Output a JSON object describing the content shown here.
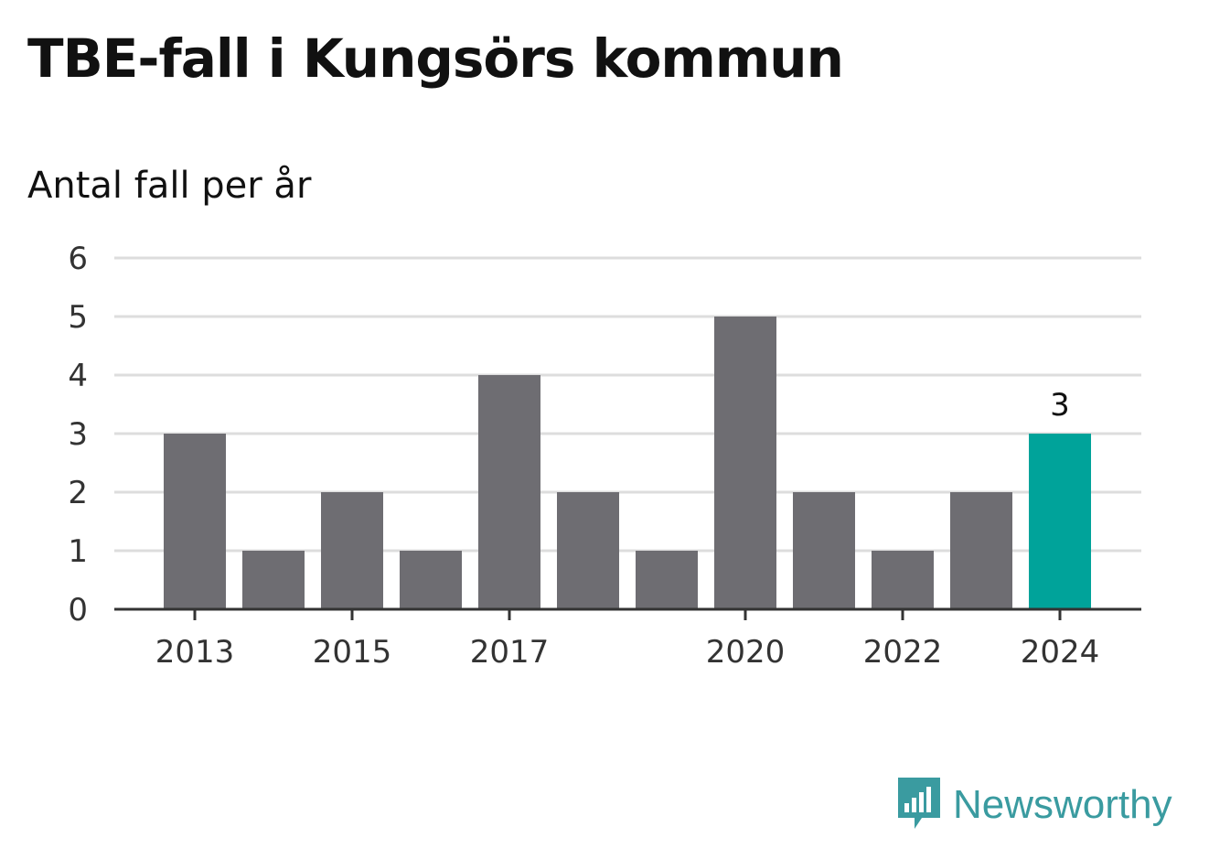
{
  "title": "TBE-fall i Kungsörs kommun",
  "subtitle": "Antal fall per år",
  "colors": {
    "bar": "#6e6d72",
    "highlight": "#00a39a",
    "grid": "#dddddd",
    "axis": "#333333",
    "brand": "#3a9ba0"
  },
  "brand": {
    "name": "Newsworthy",
    "icon": "bar-chart-speech-bubble-icon"
  },
  "chart_data": {
    "type": "bar",
    "title": "TBE-fall i Kungsörs kommun",
    "subtitle": "Antal fall per år",
    "xlabel": "",
    "ylabel": "",
    "categories": [
      "2013",
      "2014",
      "2015",
      "2016",
      "2017",
      "2018",
      "2019",
      "2020",
      "2021",
      "2022",
      "2023",
      "2024"
    ],
    "values": [
      3,
      1,
      2,
      1,
      4,
      2,
      1,
      5,
      2,
      1,
      2,
      3
    ],
    "ylim": [
      0,
      6
    ],
    "yticks": [
      0,
      1,
      2,
      3,
      4,
      5,
      6
    ],
    "xtick_labels": [
      "2013",
      "2015",
      "2017",
      "2020",
      "2022",
      "2024"
    ],
    "highlight": "2024",
    "data_labels": [
      {
        "category": "2024",
        "text": "3"
      }
    ],
    "grid": true,
    "legend": "none"
  }
}
